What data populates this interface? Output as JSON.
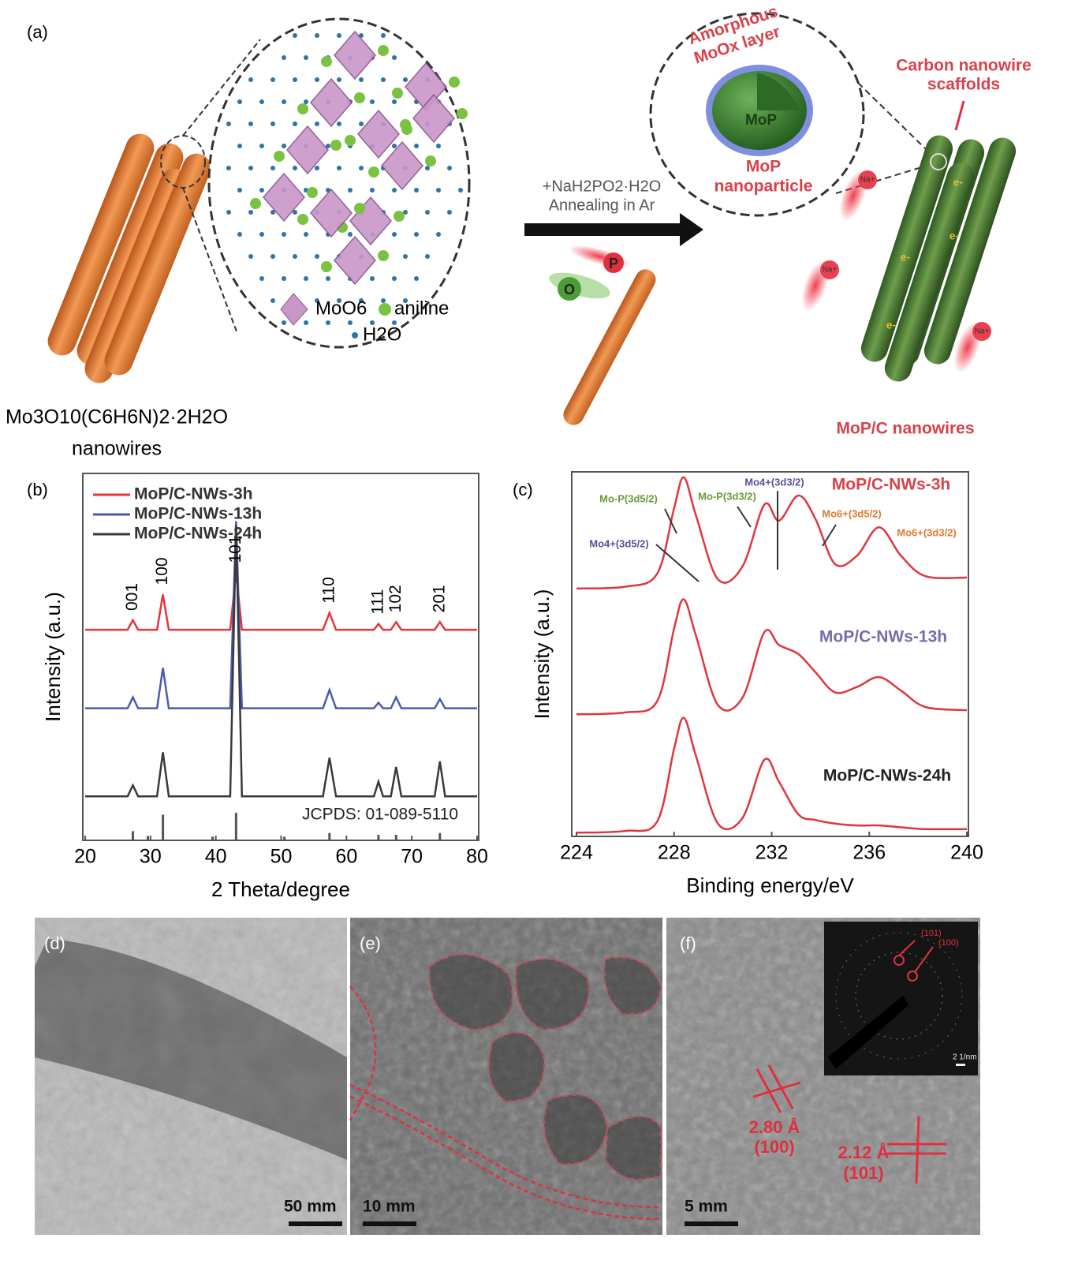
{
  "panel_a": {
    "label": "(a)",
    "precursor": [
      "Mo3O10(C6H6N)2·2H2O",
      "nanowires"
    ],
    "legend": {
      "octahedron": "MoO6",
      "sphere": "aniline",
      "dot": "H2O"
    },
    "reaction": [
      "+NaH2PO2·H2O",
      "Annealing in Ar"
    ],
    "atoms": {
      "p": "P",
      "o": "O"
    },
    "inset": {
      "shell": [
        "Amorphous",
        "MoOx layer"
      ],
      "core": "MoP",
      "caption": [
        "MoP",
        "nanoparticle"
      ]
    },
    "scaffold": [
      "Carbon nanowire",
      "scaffolds"
    ],
    "ions": [
      "Na+",
      "Na+",
      "Na+"
    ],
    "electrons": [
      "e-",
      "e-",
      "e-",
      "e-"
    ],
    "product": "MoP/C nanowires"
  },
  "chart_data": [
    {
      "type": "line",
      "label": "(b)",
      "x_label": "2 Theta/degree",
      "y_label": "Intensity (a.u.)",
      "xlim": [
        20,
        80
      ],
      "xticks": [
        20,
        30,
        40,
        50,
        60,
        70,
        80
      ],
      "ylim": [
        0,
        100
      ],
      "legend": "upper left",
      "x": [
        20,
        26.5,
        27.3,
        28.1,
        31,
        31.9,
        32.8,
        42.2,
        43.1,
        44,
        56.4,
        57.4,
        58.4,
        64.2,
        64.9,
        65.6,
        66.8,
        67.6,
        68.4,
        73.5,
        74.3,
        75.1,
        80
      ],
      "series": [
        {
          "name": "MoP/C-NWs-3h",
          "color": "#e8333a",
          "values": [
            57.4,
            57.4,
            60,
            57.4,
            57.4,
            67,
            57.4,
            57.4,
            73,
            57.4,
            57.4,
            62,
            57.4,
            57.4,
            59,
            57.4,
            57.4,
            59.5,
            57.4,
            57.4,
            59.5,
            57.4,
            57.4
          ]
        },
        {
          "name": "MoP/C-NWs-13h",
          "color": "#4a5bb5",
          "values": [
            36,
            36,
            39,
            36,
            36,
            47,
            36,
            36,
            87,
            36,
            36,
            41,
            36,
            36,
            37.5,
            36,
            36,
            39,
            36,
            36,
            38.5,
            36,
            36
          ]
        },
        {
          "name": "MoP/C-NWs-24h",
          "color": "#3a3a3a",
          "values": [
            12,
            12,
            15,
            12,
            12,
            24,
            12,
            12,
            86,
            12,
            12,
            22.5,
            12,
            12,
            16,
            12,
            12,
            20,
            12,
            12,
            21.5,
            12,
            12
          ]
        }
      ],
      "reference": {
        "name": "JCPDS: 01-089-5110",
        "color": "#555555",
        "x": [
          27.3,
          29.6,
          31.9,
          39.5,
          43.1,
          50.5,
          57.4,
          64.9,
          67.6,
          74.3
        ],
        "values": [
          2.5,
          1.2,
          7,
          1,
          7.5,
          1,
          2,
          1.5,
          1.5,
          2
        ]
      },
      "annotations": [
        {
          "text": "001",
          "x": 27.3
        },
        {
          "text": "100",
          "x": 31.9
        },
        {
          "text": "101",
          "x": 43.1
        },
        {
          "text": "110",
          "x": 57.4
        },
        {
          "text": "111",
          "x": 64.9
        },
        {
          "text": "102",
          "x": 67.6
        },
        {
          "text": "201",
          "x": 74.3
        }
      ]
    },
    {
      "type": "line",
      "label": "(c)",
      "x_label": "Binding energy/eV",
      "y_label": "Intensity (a.u.)",
      "xlim": [
        224,
        240
      ],
      "xticks": [
        224,
        228,
        232,
        236,
        240
      ],
      "ylim": [
        0,
        100
      ],
      "x": [
        224,
        226,
        227.3,
        228,
        228.4,
        228.9,
        229.8,
        230.8,
        231.7,
        232.3,
        233.1,
        233.8,
        234.6,
        235.5,
        236.4,
        237.3,
        238.3,
        240
      ],
      "series": [
        {
          "name": "MoP/C-NWs-3h",
          "color": "#e03540",
          "label_color": "#d9414a",
          "values": [
            68,
            68.5,
            72,
            90,
            98.5,
            88,
            70.5,
            74,
            91,
            86.6,
            93.5,
            87,
            74.7,
            77,
            84.8,
            77,
            71.4,
            71
          ]
        },
        {
          "name": "MoP/C-NWs-13h",
          "color": "#e03540",
          "label_color": "#7a6bb0",
          "values": [
            33.5,
            34,
            37,
            57,
            65,
            55,
            36,
            38,
            56,
            52.5,
            50,
            45,
            39.5,
            41,
            43.7,
            40,
            35.5,
            34.6
          ]
        },
        {
          "name": "MoP/C-NWs-24h",
          "color": "#e03540",
          "label_color": "#222222",
          "values": [
            1,
            1.5,
            4,
            24,
            32.5,
            22,
            3.5,
            5,
            21,
            15,
            6,
            4.5,
            3.5,
            3,
            3,
            2.5,
            2,
            2
          ]
        }
      ],
      "annotations": [
        {
          "text": "Mo-P(3d5/2)",
          "color": "#6a9a3a"
        },
        {
          "text": "Mo4+(3d5/2)",
          "color": "#5a4f9a"
        },
        {
          "text": "Mo-P(3d3/2)",
          "color": "#6a9a3a"
        },
        {
          "text": "Mo4+(3d3/2)",
          "color": "#5a4f9a"
        },
        {
          "text": "Mo6+(3d5/2)",
          "color": "#e07a30"
        },
        {
          "text": "Mo6+(3d3/2)",
          "color": "#e07a30"
        }
      ]
    }
  ],
  "micrographs": [
    {
      "label": "(d)",
      "scale_bar": "50 mm"
    },
    {
      "label": "(e)",
      "scale_bar": "10 mm"
    },
    {
      "label": "(f)",
      "scale_bar": "5 mm",
      "annotations": [
        "2.80 Å",
        "(100)",
        "2.12 Å",
        "(101)"
      ],
      "inset": [
        "(101)",
        "(100)",
        "2 1/nm"
      ]
    }
  ]
}
